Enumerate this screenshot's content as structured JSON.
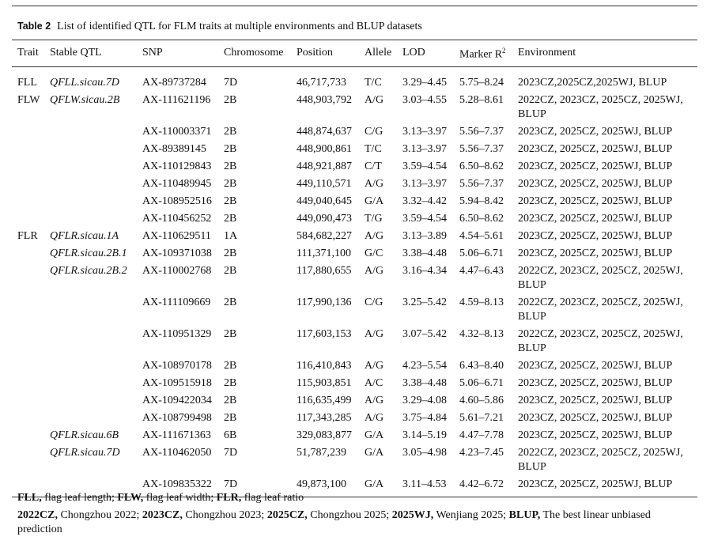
{
  "caption": {
    "label": "Table 2",
    "text": "List of identified QTL for FLM traits at multiple environments and BLUP datasets"
  },
  "header": [
    "Trait",
    "Stable QTL",
    "SNP",
    "Chromosome",
    "Position",
    "Allele",
    "LOD",
    {
      "text": "Marker R",
      "sup": "2"
    },
    "Environment"
  ],
  "rows": [
    [
      "FLL",
      "QFLL.sicau.7D",
      "AX-89737284",
      "7D",
      "46,717,733",
      "T/C",
      "3.29–4.45",
      "5.75–8.24",
      "2023CZ,2025CZ,2025WJ, BLUP"
    ],
    [
      "FLW",
      "QFLW.sicau.2B",
      "AX-111621196",
      "2B",
      "448,903,792",
      "A/G",
      "3.03–4.55",
      "5.28–8.61",
      "2022CZ, 2023CZ, 2025CZ, 2025WJ, BLUP"
    ],
    [
      "",
      "",
      "AX-110003371",
      "2B",
      "448,874,637",
      "C/G",
      "3.13–3.97",
      "5.56–7.37",
      "2023CZ, 2025CZ, 2025WJ, BLUP"
    ],
    [
      "",
      "",
      "AX-89389145",
      "2B",
      "448,900,861",
      "T/C",
      "3.13–3.97",
      "5.56–7.37",
      "2023CZ, 2025CZ, 2025WJ, BLUP"
    ],
    [
      "",
      "",
      "AX-110129843",
      "2B",
      "448,921,887",
      "C/T",
      "3.59–4.54",
      "6.50–8.62",
      "2023CZ, 2025CZ, 2025WJ, BLUP"
    ],
    [
      "",
      "",
      "AX-110489945",
      "2B",
      "449,110,571",
      "A/G",
      "3.13–3.97",
      "5.56–7.37",
      "2023CZ, 2025CZ, 2025WJ, BLUP"
    ],
    [
      "",
      "",
      "AX-108952516",
      "2B",
      "449,040,645",
      "G/A",
      "3.32–4.42",
      "5.94–8.42",
      "2023CZ, 2025CZ, 2025WJ, BLUP"
    ],
    [
      "",
      "",
      "AX-110456252",
      "2B",
      "449,090,473",
      "T/G",
      "3.59–4.54",
      "6.50–8.62",
      "2023CZ, 2025CZ, 2025WJ, BLUP"
    ],
    [
      "FLR",
      "QFLR.sicau.1A",
      "AX-110629511",
      "1A",
      "584,682,227",
      "A/G",
      "3.13–3.89",
      "4.54–5.61",
      "2023CZ, 2025CZ, 2025WJ, BLUP"
    ],
    [
      "",
      "QFLR.sicau.2B.1",
      "AX-109371038",
      "2B",
      "111,371,100",
      "G/C",
      "3.38–4.48",
      "5.06–6.71",
      "2023CZ, 2025CZ, 2025WJ, BLUP"
    ],
    [
      "",
      "QFLR.sicau.2B.2",
      "AX-110002768",
      "2B",
      "117,880,655",
      "A/G",
      "3.16–4.34",
      "4.47–6.43",
      "2022CZ, 2023CZ, 2025CZ, 2025WJ, BLUP"
    ],
    [
      "",
      "",
      "AX-111109669",
      "2B",
      "117,990,136",
      "C/G",
      "3.25–5.42",
      "4.59–8.13",
      "2022CZ, 2023CZ, 2025CZ, 2025WJ, BLUP"
    ],
    [
      "",
      "",
      "AX-110951329",
      "2B",
      "117,603,153",
      "A/G",
      "3.07–5.42",
      "4.32–8.13",
      "2022CZ, 2023CZ, 2025CZ, 2025WJ, BLUP"
    ],
    [
      "",
      "",
      "AX-108970178",
      "2B",
      "116,410,843",
      "A/G",
      "4.23–5.54",
      "6.43–8.40",
      "2023CZ, 2025CZ, 2025WJ, BLUP"
    ],
    [
      "",
      "",
      "AX-109515918",
      "2B",
      "115,903,851",
      "A/C",
      "3.38–4.48",
      "5.06–6.71",
      "2023CZ, 2025CZ, 2025WJ, BLUP"
    ],
    [
      "",
      "",
      "AX-109422034",
      "2B",
      "116,635,499",
      "A/G",
      "3.29–4.08",
      "4.60–5.86",
      "2023CZ, 2025CZ, 2025WJ, BLUP"
    ],
    [
      "",
      "",
      "AX-108799498",
      "2B",
      "117,343,285",
      "A/G",
      "3.75–4.84",
      "5.61–7.21",
      "2023CZ, 2025CZ, 2025WJ, BLUP"
    ],
    [
      "",
      "QFLR.sicau.6B",
      "AX-111671363",
      "6B",
      "329,083,877",
      "G/A",
      "3.14–5.19",
      "4.47–7.78",
      "2023CZ, 2025CZ, 2025WJ, BLUP"
    ],
    [
      "",
      "QFLR.sicau.7D",
      "AX-110462050",
      "7D",
      "51,787,239",
      "G/A",
      "3.05–4.98",
      "4.23–7.45",
      "2022CZ, 2023CZ, 2025CZ, 2025WJ, BLUP"
    ],
    [
      "",
      "",
      "AX-109835322",
      "7D",
      "49,873,100",
      "G/A",
      "3.11–4.53",
      "4.42–6.72",
      "2023CZ, 2025CZ, 2025WJ, BLUP"
    ]
  ],
  "footnotes": [
    [
      [
        "FLL,",
        "flag leaf length;"
      ],
      [
        "FLW,",
        "flag leaf width;"
      ],
      [
        "FLR,",
        "flag leaf ratio"
      ]
    ],
    [
      [
        "2022CZ,",
        "Chongzhou 2022;"
      ],
      [
        "2023CZ,",
        "Chongzhou 2023;"
      ],
      [
        "2025CZ,",
        "Chongzhou 2025;"
      ],
      [
        "2025WJ,",
        "Wenjiang 2025;"
      ],
      [
        "BLUP,",
        "The best linear unbiased prediction"
      ]
    ]
  ]
}
